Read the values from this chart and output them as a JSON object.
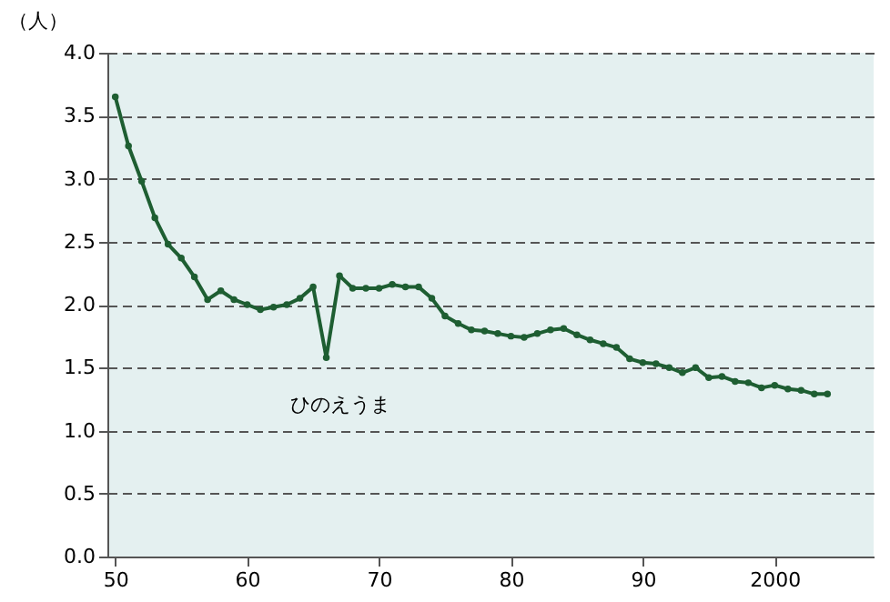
{
  "chart_data": {
    "type": "line",
    "ylabel": "（人）",
    "x": [
      1950,
      1951,
      1952,
      1953,
      1954,
      1955,
      1956,
      1957,
      1958,
      1959,
      1960,
      1961,
      1962,
      1963,
      1964,
      1965,
      1966,
      1967,
      1968,
      1969,
      1970,
      1971,
      1972,
      1973,
      1974,
      1975,
      1976,
      1977,
      1978,
      1979,
      1980,
      1981,
      1982,
      1983,
      1984,
      1985,
      1986,
      1987,
      1988,
      1989,
      1990,
      1991,
      1992,
      1993,
      1994,
      1995,
      1996,
      1997,
      1998,
      1999,
      2000,
      2001,
      2002,
      2003,
      2004
    ],
    "series": [
      {
        "color": "#1e5e32",
        "values": [
          3.65,
          3.26,
          2.98,
          2.69,
          2.48,
          2.37,
          2.22,
          2.04,
          2.11,
          2.04,
          2.0,
          1.96,
          1.98,
          2.0,
          2.05,
          2.14,
          1.58,
          2.23,
          2.13,
          2.13,
          2.13,
          2.16,
          2.14,
          2.14,
          2.05,
          1.91,
          1.85,
          1.8,
          1.79,
          1.77,
          1.75,
          1.74,
          1.77,
          1.8,
          1.81,
          1.76,
          1.72,
          1.69,
          1.66,
          1.57,
          1.54,
          1.53,
          1.5,
          1.46,
          1.5,
          1.42,
          1.43,
          1.39,
          1.38,
          1.34,
          1.36,
          1.33,
          1.32,
          1.29,
          1.29
        ]
      }
    ],
    "xlim": [
      1949.4,
      2007.5
    ],
    "xticks": [
      {
        "value": 1950,
        "label": "50"
      },
      {
        "value": 1960,
        "label": "60"
      },
      {
        "value": 1970,
        "label": "70"
      },
      {
        "value": 1980,
        "label": "80"
      },
      {
        "value": 1990,
        "label": "90"
      },
      2000
    ],
    "ylim": [
      0,
      4
    ],
    "yticks": [
      {
        "value": 0,
        "label": "0.0"
      },
      {
        "value": 0.5,
        "label": "0.5"
      },
      {
        "value": 1,
        "label": "1.0"
      },
      {
        "value": 1.5,
        "label": "1.5"
      },
      {
        "value": 2,
        "label": "2.0"
      },
      {
        "value": 2.5,
        "label": "2.5"
      },
      {
        "value": 3,
        "label": "3.0"
      },
      {
        "value": 3.5,
        "label": "3.5"
      },
      {
        "value": 4,
        "label": "4.0"
      }
    ],
    "grid": "y",
    "marker": "circle",
    "line_style": "solid",
    "annotations": [
      "ひのえうま"
    ]
  }
}
